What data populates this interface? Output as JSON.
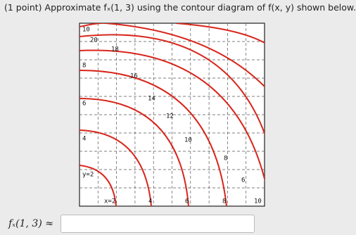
{
  "question": "(1 point) Approximate fₓ(1, 3) using the contour diagram of f(x, y) shown below.",
  "diagram": {
    "contour_labels": [
      "20",
      "18",
      "16",
      "14",
      "12",
      "10",
      "8",
      "6"
    ],
    "y_labels": [
      "10",
      "8",
      "6",
      "4",
      "y=2"
    ],
    "x_labels": [
      "x=2",
      "4",
      "6",
      "8",
      "10"
    ]
  },
  "answer": {
    "label": "fₓ(1, 3) ≈"
  }
}
